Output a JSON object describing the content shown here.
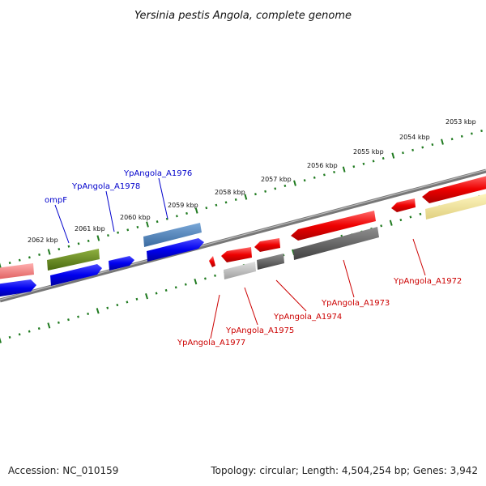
{
  "title": "Yersinia pestis Angola, complete genome",
  "footer": {
    "accession": "Accession: NC_010159",
    "summary": "Topology: circular; Length: 4,504,254 bp; Genes: 3,942"
  },
  "colors": {
    "backbone": "#777777",
    "scale_dots": "#1f7a1f",
    "forward_label": "#0000cc",
    "reverse_label": "#cc0000"
  },
  "scale_ticks": [
    "2062 kbp",
    "2061 kbp",
    "2060 kbp",
    "2059 kbp",
    "2058 kbp",
    "2057 kbp",
    "2056 kbp",
    "2055 kbp",
    "2054 kbp",
    "2053 kbp"
  ],
  "gene_labels_forward": [
    "ompF",
    "YpAngola_A1978",
    "YpAngola_A1976"
  ],
  "gene_labels_reverse": [
    "YpAngola_A1977",
    "YpAngola_A1975",
    "YpAngola_A1974",
    "YpAngola_A1973",
    "YpAngola_A1972"
  ]
}
